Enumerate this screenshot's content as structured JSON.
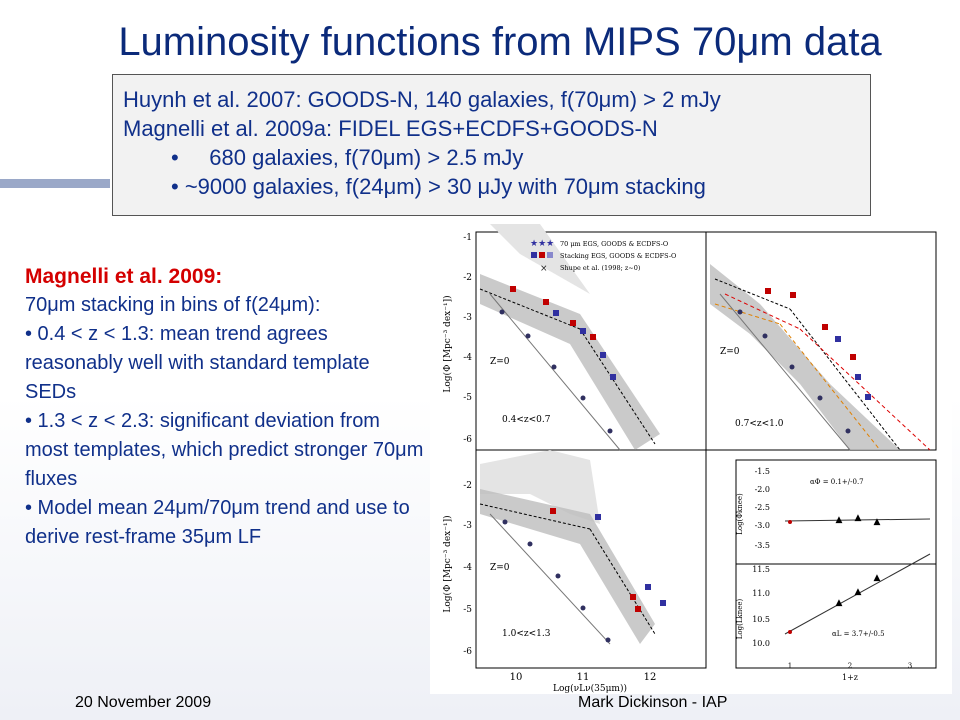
{
  "title": "Luminosity functions from MIPS 70μm data",
  "box": {
    "line1": "Huynh et al. 2007: GOODS-N, 140 galaxies, f(70μm) > 2 mJy",
    "line2": "Magnelli et al. 2009a: FIDEL EGS+ECDFS+GOODS-N",
    "bullet1": "•     680 galaxies, f(70μm) > 2.5 mJy",
    "bullet2": "• ~9000 galaxies, f(24μm) > 30 μJy with 70μm stacking"
  },
  "left": {
    "heading": "Magnelli et al. 2009:",
    "l1": "70μm stacking in bins of f(24μm):",
    "l2": "• 0.4 < z < 1.3: mean trend agrees reasonably well with standard template SEDs",
    "l3": "• 1.3 < z < 2.3: significant deviation from most templates, which predict stronger 70μm fluxes",
    "l4": "• Model mean 24μm/70μm trend and use to derive rest-frame 35μm LF"
  },
  "figure": {
    "legend": [
      "70 μm EGS, GOODS & ECDFS-O",
      "Stacking EGS, GOODS & ECDFS-O",
      "Shupe et al. (1998; z~0)"
    ],
    "ylabel": "Log(Φ [Mpc⁻³ dex⁻¹])",
    "xlabel": "Log(νLν(35μm))",
    "panel_labels": [
      "0.4<z<0.7",
      "0.7<z<1.0",
      "1.0<z<1.3"
    ],
    "z0_label": "Z=0",
    "y_ticks_top": [
      "-1",
      "-2",
      "-3",
      "-4",
      "-5",
      "-6"
    ],
    "y_ticks_bottom": [
      "-2",
      "-3",
      "-4",
      "-5",
      "-6"
    ],
    "x_ticks": [
      "10",
      "11",
      "12"
    ],
    "small_top_ticks": [
      "-1.5",
      "-2.0",
      "-2.5",
      "-3.0",
      "-3.5"
    ],
    "small_bottom_ticks": [
      "11.5",
      "11.0",
      "10.5",
      "10.0"
    ],
    "small_x_ticks": [
      "1",
      "2",
      "3"
    ],
    "small_xlabel": "1+z",
    "small_ylabel_top": "Log(Φknee)",
    "small_ylabel_bottom": "Log(Lknee)",
    "alpha_phi": "αΦ = 0.1+/-0.7",
    "alpha_l": "αL = 3.7+/-0.5"
  },
  "footer": {
    "date": "20 November 2009",
    "author": "Mark Dickinson - IAP"
  }
}
